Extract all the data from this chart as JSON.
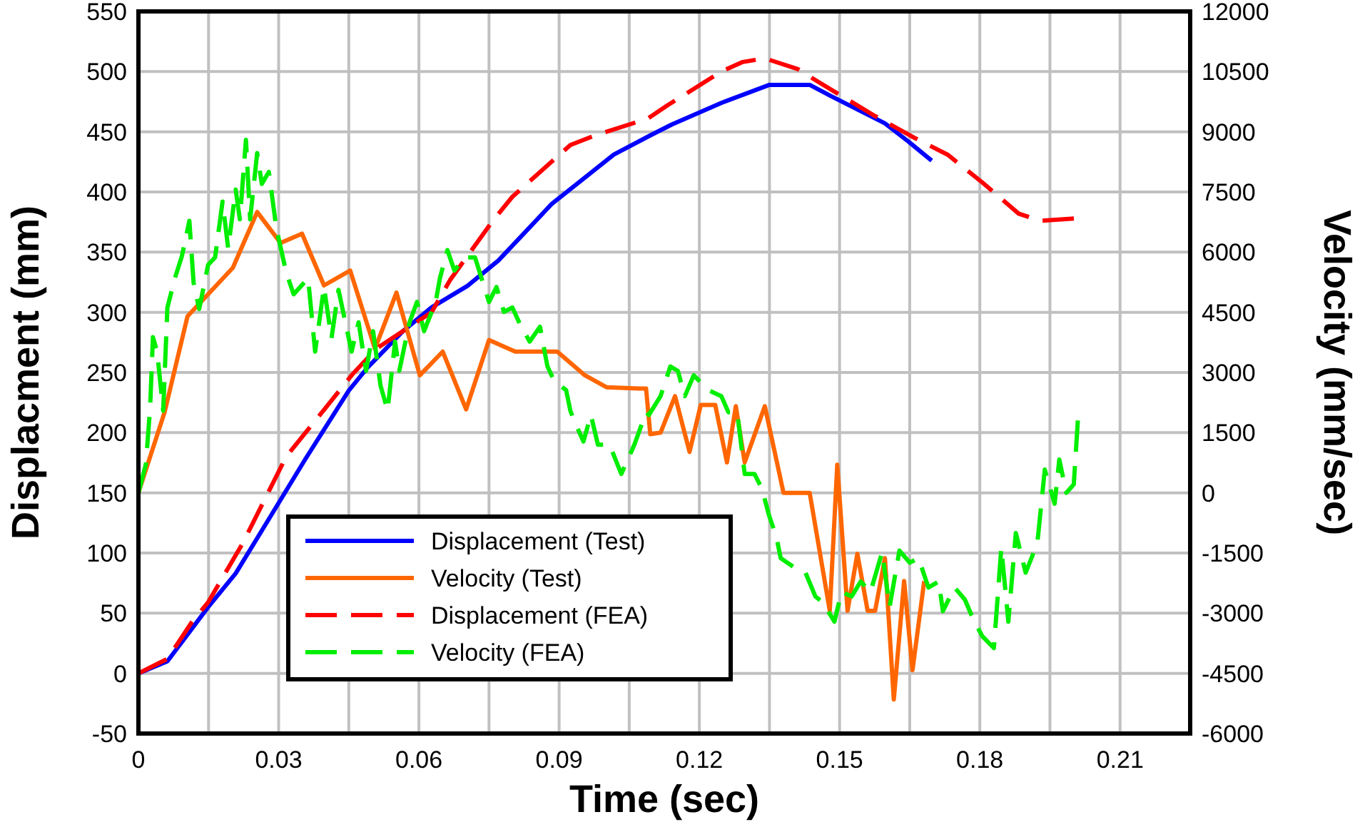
{
  "chart_data": {
    "type": "line",
    "xlabel": "Time (sec)",
    "ylabel": "Displacment (mm)",
    "y2label": "Velocity (mm/sec)",
    "xlim": [
      0,
      0.225
    ],
    "xticks": [
      0,
      {
        "value": 0.015,
        "label": null
      },
      0.03,
      {
        "value": 0.045,
        "label": null
      },
      0.06,
      {
        "value": 0.075,
        "label": null
      },
      0.09,
      {
        "value": 0.105,
        "label": null
      },
      0.12,
      {
        "value": 0.135,
        "label": null
      },
      0.15,
      {
        "value": 0.165,
        "label": null
      },
      0.18,
      {
        "value": 0.195,
        "label": null
      },
      0.21
    ],
    "ylim": [
      -50,
      550
    ],
    "yticks": [
      -50,
      0,
      50,
      100,
      150,
      200,
      250,
      300,
      350,
      400,
      450,
      500,
      550
    ],
    "y2lim": [
      -6000,
      12000
    ],
    "y2ticks": [
      -6000,
      -4500,
      -3000,
      -1500,
      0,
      1500,
      3000,
      4500,
      6000,
      7500,
      9000,
      10500,
      12000
    ],
    "grid": true,
    "legend": "bottom left",
    "marker": "none",
    "series": [
      {
        "name": "Displacement (Test)",
        "color": "#0000ff",
        "line_style": "solid",
        "x": [
          0,
          0.0062,
          0.0149,
          0.0208,
          0.0285,
          0.0357,
          0.045,
          0.049,
          0.0565,
          0.0627,
          0.0704,
          0.077,
          0.0884,
          0.1017,
          0.1095,
          0.1141,
          0.1247,
          0.135,
          0.1436,
          0.148,
          0.1597,
          0.165,
          0.1697
        ],
        "values": [
          0,
          10,
          55,
          83,
          132,
          178,
          235,
          254,
          284,
          304,
          322,
          343,
          390,
          431,
          447,
          456,
          474,
          489,
          489,
          480,
          457,
          441,
          426
        ]
      },
      {
        "name": "Velocity (Test)",
        "color": "#ff6600",
        "line_style": "solid",
        "axis": "y2",
        "x": [
          0,
          0.0056,
          0.0105,
          0.0202,
          0.0254,
          0.0304,
          0.035,
          0.0397,
          0.0453,
          0.0506,
          0.0552,
          0.0602,
          0.0651,
          0.0701,
          0.075,
          0.0806,
          0.0896,
          0.0955,
          0.1002,
          0.107,
          0.1086,
          0.1095,
          0.1117,
          0.1148,
          0.1179,
          0.1203,
          0.1234,
          0.1259,
          0.1278,
          0.1297,
          0.134,
          0.138,
          0.1436,
          0.1479,
          0.1495,
          0.1517,
          0.1538,
          0.156,
          0.1576,
          0.1597,
          0.1616,
          0.1638,
          0.1656,
          0.1681
        ],
        "values": [
          0,
          2010,
          4400,
          5610,
          7000,
          6230,
          6460,
          5170,
          5540,
          3590,
          4990,
          2930,
          3520,
          2080,
          3810,
          3520,
          3520,
          2930,
          2630,
          2600,
          2600,
          1460,
          1500,
          2410,
          1020,
          2190,
          2190,
          760,
          2160,
          760,
          2160,
          0,
          0,
          -2940,
          700,
          -2940,
          -1520,
          -2940,
          -2940,
          -1630,
          -5150,
          -2200,
          -4420,
          -2200
        ]
      },
      {
        "name": "Displacement (FEA)",
        "color": "#ff0000",
        "line_style": "dashed",
        "x": [
          0,
          0.0062,
          0.0115,
          0.0149,
          0.0223,
          0.0316,
          0.0397,
          0.0459,
          0.051,
          0.0627,
          0.0667,
          0.076,
          0.08,
          0.0924,
          0.0977,
          0.109,
          0.1132,
          0.1247,
          0.1293,
          0.134,
          0.1411,
          0.1452,
          0.1576,
          0.166,
          0.1731,
          0.1805,
          0.1883,
          0.1929,
          0.2007
        ],
        "values": [
          0,
          12,
          43,
          59,
          108,
          180,
          219,
          249,
          270,
          300,
          327,
          377,
          396,
          439,
          447,
          461,
          472,
          500,
          508,
          511,
          502,
          492,
          463,
          445,
          431,
          408,
          382,
          376,
          378
        ]
      },
      {
        "name": "Velocity (FEA)",
        "color": "#00ee00",
        "line_style": "dashed",
        "axis": "y2",
        "x": [
          0,
          0.0016,
          0.0025,
          0.0031,
          0.004,
          0.0053,
          0.0062,
          0.0078,
          0.0093,
          0.0109,
          0.0118,
          0.013,
          0.0149,
          0.0164,
          0.018,
          0.0192,
          0.0208,
          0.0217,
          0.023,
          0.0239,
          0.0254,
          0.0264,
          0.0279,
          0.0295,
          0.0316,
          0.0332,
          0.0363,
          0.0378,
          0.0397,
          0.0413,
          0.0428,
          0.0456,
          0.0471,
          0.0487,
          0.0502,
          0.0518,
          0.0533,
          0.0549,
          0.0558,
          0.058,
          0.0596,
          0.0611,
          0.0636,
          0.0645,
          0.0661,
          0.0676,
          0.0698,
          0.072,
          0.075,
          0.0766,
          0.0782,
          0.08,
          0.0816,
          0.0837,
          0.0859,
          0.0875,
          0.089,
          0.0915,
          0.0924,
          0.093,
          0.0952,
          0.0968,
          0.0983,
          0.1008,
          0.1033,
          0.1061,
          0.1086,
          0.1092,
          0.1117,
          0.1138,
          0.1154,
          0.1169,
          0.1188,
          0.1219,
          0.1247,
          0.1262,
          0.1281,
          0.1297,
          0.1318,
          0.1334,
          0.1349,
          0.1365,
          0.1374,
          0.1402,
          0.1427,
          0.1448,
          0.1464,
          0.1489,
          0.1504,
          0.1526,
          0.1545,
          0.1566,
          0.1591,
          0.1607,
          0.1628,
          0.165,
          0.1669,
          0.169,
          0.1712,
          0.1721,
          0.1746,
          0.1768,
          0.1784,
          0.1805,
          0.183,
          0.1846,
          0.1861,
          0.1877,
          0.1898,
          0.1923,
          0.1939,
          0.196,
          0.197,
          0.1985,
          0.2001,
          0.201
        ],
        "values": [
          0,
          720,
          2120,
          3880,
          3520,
          2050,
          4620,
          5350,
          5900,
          6780,
          5240,
          4580,
          5680,
          5870,
          7260,
          6090,
          7560,
          6820,
          8800,
          6820,
          8470,
          7700,
          8000,
          6600,
          5500,
          4950,
          5350,
          3520,
          5130,
          3850,
          5060,
          3520,
          4250,
          3040,
          4030,
          2670,
          2050,
          3770,
          3040,
          4250,
          4760,
          4030,
          4760,
          5350,
          6050,
          5540,
          5870,
          5870,
          4760,
          5130,
          4510,
          4620,
          4210,
          3770,
          4140,
          3150,
          2780,
          2560,
          2050,
          1860,
          1280,
          1940,
          1200,
          1200,
          470,
          1200,
          2010,
          1940,
          2410,
          3150,
          3040,
          2410,
          2930,
          2560,
          2410,
          2010,
          2010,
          470,
          470,
          100,
          -560,
          -1110,
          -1630,
          -1850,
          -1990,
          -2580,
          -2730,
          -3210,
          -2470,
          -2580,
          -2210,
          -2470,
          -1480,
          -2840,
          -1440,
          -1740,
          -1630,
          -2360,
          -2210,
          -2950,
          -2360,
          -2660,
          -3100,
          -3570,
          -3870,
          -1370,
          -3210,
          -1000,
          -1990,
          -1260,
          580,
          -270,
          830,
          0,
          210,
          1860
        ]
      }
    ]
  }
}
